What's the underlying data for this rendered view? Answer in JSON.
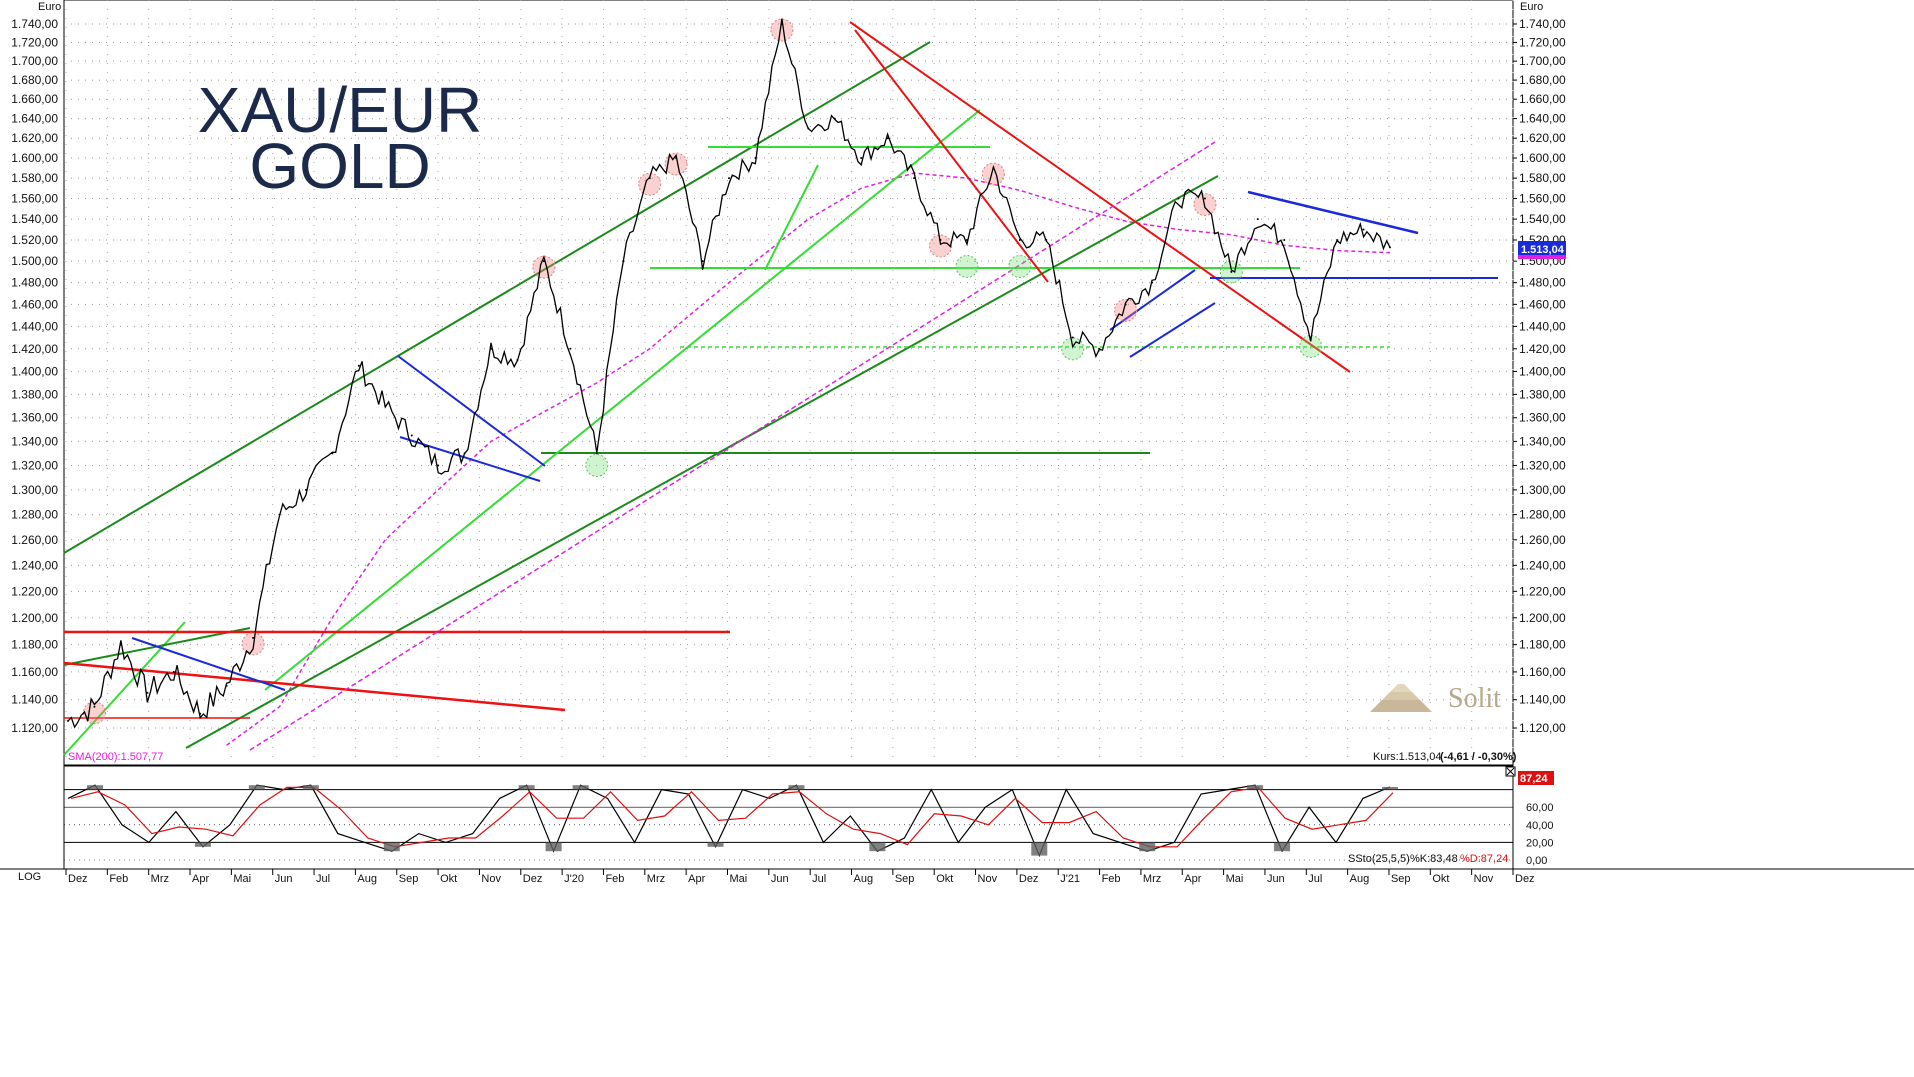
{
  "chart_data": {
    "type": "line",
    "title": "XAU/EUR",
    "subtitle": "GOLD",
    "ylabel": "Euro",
    "ylim": [
      1100,
      1750
    ],
    "y_ticks": [
      1120,
      1140,
      1160,
      1180,
      1200,
      1220,
      1240,
      1260,
      1280,
      1300,
      1320,
      1340,
      1360,
      1380,
      1400,
      1420,
      1440,
      1460,
      1480,
      1500,
      1520,
      1540,
      1560,
      1580,
      1600,
      1620,
      1640,
      1660,
      1680,
      1700,
      1720,
      1740
    ],
    "y_tick_labels": [
      "1.120,00",
      "1.140,00",
      "1.160,00",
      "1.180,00",
      "1.200,00",
      "1.220,00",
      "1.240,00",
      "1.260,00",
      "1.280,00",
      "1.300,00",
      "1.320,00",
      "1.340,00",
      "1.360,00",
      "1.380,00",
      "1.400,00",
      "1.420,00",
      "1.440,00",
      "1.460,00",
      "1.480,00",
      "1.500,00",
      "1.520,00",
      "1.540,00",
      "1.560,00",
      "1.580,00",
      "1.600,00",
      "1.620,00",
      "1.640,00",
      "1.660,00",
      "1.680,00",
      "1.700,00",
      "1.720,00",
      "1.740,00"
    ],
    "x_labels": [
      "Dez",
      "Feb",
      "Mrz",
      "Apr",
      "Mai",
      "Jun",
      "Jul",
      "Aug",
      "Sep",
      "Okt",
      "Nov",
      "Dez",
      "J'20",
      "Feb",
      "Mrz",
      "Apr",
      "Mai",
      "Jun",
      "Jul",
      "Aug",
      "Sep",
      "Okt",
      "Nov",
      "Dez",
      "J'21",
      "Feb",
      "Mrz",
      "Apr",
      "Mai",
      "Jun",
      "Jul",
      "Aug",
      "Sep",
      "Okt",
      "Nov",
      "Dez"
    ],
    "price_series": {
      "name": "XAU/EUR",
      "points": [
        [
          0,
          1125
        ],
        [
          1,
          1135
        ],
        [
          2,
          1180
        ],
        [
          3,
          1145
        ],
        [
          4,
          1160
        ],
        [
          5,
          1130
        ],
        [
          6,
          1150
        ],
        [
          7,
          1185
        ],
        [
          8,
          1280
        ],
        [
          9,
          1300
        ],
        [
          10,
          1330
        ],
        [
          11,
          1405
        ],
        [
          12,
          1370
        ],
        [
          13,
          1345
        ],
        [
          14,
          1320
        ],
        [
          15,
          1330
        ],
        [
          16,
          1420
        ],
        [
          17,
          1410
        ],
        [
          18,
          1500
        ],
        [
          19,
          1420
        ],
        [
          20,
          1330
        ],
        [
          21,
          1500
        ],
        [
          22,
          1580
        ],
        [
          23,
          1600
        ],
        [
          24,
          1500
        ],
        [
          25,
          1580
        ],
        [
          26,
          1600
        ],
        [
          27,
          1740
        ],
        [
          28,
          1630
        ],
        [
          29,
          1640
        ],
        [
          30,
          1600
        ],
        [
          31,
          1620
        ],
        [
          32,
          1580
        ],
        [
          33,
          1520
        ],
        [
          34,
          1520
        ],
        [
          35,
          1590
        ],
        [
          36,
          1520
        ],
        [
          37,
          1520
        ],
        [
          38,
          1430
        ],
        [
          39,
          1420
        ],
        [
          40,
          1460
        ],
        [
          41,
          1480
        ],
        [
          42,
          1560
        ],
        [
          43,
          1560
        ],
        [
          44,
          1490
        ],
        [
          45,
          1540
        ],
        [
          46,
          1520
        ],
        [
          47,
          1430
        ],
        [
          48,
          1520
        ],
        [
          49,
          1530
        ],
        [
          50,
          1513
        ]
      ]
    },
    "sma200": {
      "name": "SMA(200)",
      "points": [
        [
          6,
          1108
        ],
        [
          8,
          1135
        ],
        [
          10,
          1200
        ],
        [
          12,
          1260
        ],
        [
          14,
          1300
        ],
        [
          16,
          1340
        ],
        [
          18,
          1365
        ],
        [
          20,
          1390
        ],
        [
          22,
          1420
        ],
        [
          24,
          1460
        ],
        [
          26,
          1500
        ],
        [
          28,
          1540
        ],
        [
          30,
          1570
        ],
        [
          32,
          1585
        ],
        [
          34,
          1580
        ],
        [
          36,
          1568
        ],
        [
          38,
          1552
        ],
        [
          40,
          1538
        ],
        [
          42,
          1530
        ],
        [
          44,
          1525
        ],
        [
          46,
          1515
        ],
        [
          48,
          1510
        ],
        [
          50,
          1508
        ]
      ]
    },
    "last_value": "1.513,04",
    "status_text": "Kurs:1.513,04",
    "change_text": "(-4,61 / -0,30%)",
    "sma_label": "SMA(200):1.507,77",
    "oscillator": {
      "name": "SSto(25,5,5)",
      "ylim": [
        0,
        100
      ],
      "y_tick_labels": [
        "0,00",
        "20,00",
        "40,00",
        "60,00"
      ],
      "k_label": "%K:83,48",
      "d_label": "%D:87,24",
      "last_value": "87,24",
      "k_values": [
        70,
        85,
        40,
        20,
        55,
        15,
        40,
        85,
        80,
        85,
        30,
        20,
        10,
        30,
        20,
        30,
        70,
        85,
        10,
        85,
        70,
        20,
        80,
        75,
        15,
        80,
        70,
        85,
        20,
        50,
        10,
        25,
        80,
        20,
        60,
        80,
        5,
        80,
        30,
        20,
        10,
        20,
        75,
        80,
        85,
        10,
        60,
        20,
        70,
        83
      ]
    }
  },
  "labels": {
    "log": "LOG",
    "brand": "Solit"
  },
  "colors": {
    "price": "#000000",
    "sma": "#e020e0",
    "trend_green_dark": "#1a8a1a",
    "trend_green_light": "#33dd33",
    "trend_red": "#ee1111",
    "trend_blue": "#1a2ad8",
    "osc_fill": "#606060",
    "osc_d": "#dd1111"
  }
}
